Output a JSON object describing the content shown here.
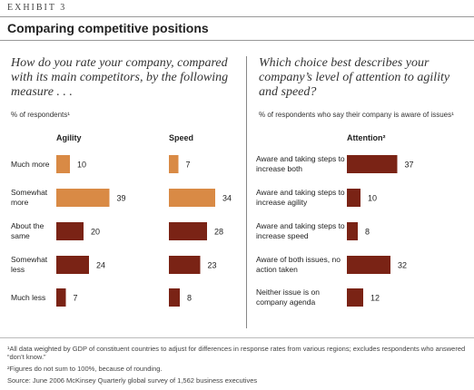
{
  "header": {
    "exhibit": "EXHIBIT 3",
    "title": "Comparing competitive positions"
  },
  "panels": [
    {
      "question": "How do you rate your company, compared with its main competitors, by the following measure . . .",
      "subtitle": "% of respondents¹"
    },
    {
      "question": "Which choice best describes your company’s level of attention to agility and speed?",
      "subtitle": "% of respondents who say their company is aware of issues¹"
    }
  ],
  "chart_data": [
    {
      "type": "bar",
      "title": "Agility",
      "categories": [
        "Much more",
        "Somewhat more",
        "About the same",
        "Somewhat less",
        "Much less"
      ],
      "values": [
        10,
        39,
        20,
        24,
        7
      ],
      "colors": [
        "#d98a45",
        "#d98a45",
        "#7a2315",
        "#7a2315",
        "#7a2315"
      ]
    },
    {
      "type": "bar",
      "title": "Speed",
      "values": [
        7,
        34,
        28,
        23,
        8
      ],
      "colors": [
        "#d98a45",
        "#d98a45",
        "#7a2315",
        "#7a2315",
        "#7a2315"
      ]
    },
    {
      "type": "bar",
      "title": "Attention²",
      "categories": [
        "Aware and taking steps to increase both",
        "Aware and taking steps to increase agility",
        "Aware and taking steps to increase speed",
        "Aware of both issues, no action taken",
        "Neither issue is on company agenda"
      ],
      "values": [
        37,
        10,
        8,
        32,
        12
      ],
      "colors": [
        "#7a2315",
        "#7a2315",
        "#7a2315",
        "#7a2315",
        "#7a2315"
      ]
    }
  ],
  "footnotes": [
    "¹All data weighted by GDP of constituent countries to adjust for differences in response rates from various regions; excludes respondents who answered “don’t know.”",
    "²Figures do not sum to 100%, because of rounding.",
    "Source: June 2006 McKinsey Quarterly global survey of 1,562 business executives"
  ]
}
